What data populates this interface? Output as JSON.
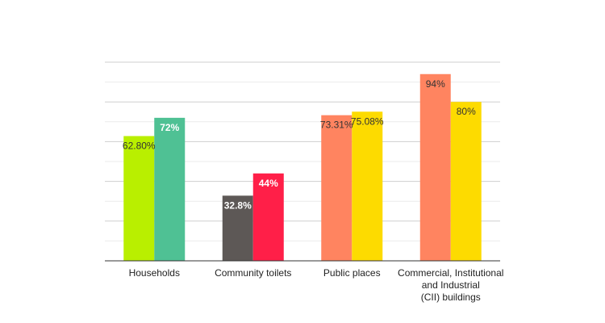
{
  "chart_data": {
    "type": "bar",
    "title": "",
    "xlabel": "",
    "ylabel": "",
    "ylim": [
      0,
      100
    ],
    "grid": true,
    "categories": [
      [
        "Households"
      ],
      [
        "Community toilets"
      ],
      [
        "Public places"
      ],
      [
        "Commercial, Institutional",
        "and Industrial",
        "(CII) buildings"
      ]
    ],
    "bars": [
      [
        {
          "value": 62.8,
          "label": "62.80%",
          "color": "#b9ef00",
          "label_color": "#333333",
          "bold": false
        },
        {
          "value": 72,
          "label": "72%",
          "color": "#4fc194",
          "label_color": "#ffffff",
          "bold": true
        }
      ],
      [
        {
          "value": 32.8,
          "label": "32.8%",
          "color": "#5d5856",
          "label_color": "#ffffff",
          "bold": true
        },
        {
          "value": 44,
          "label": "44%",
          "color": "#ff1f48",
          "label_color": "#ffffff",
          "bold": true
        }
      ],
      [
        {
          "value": 73.31,
          "label": "73.31%",
          "color": "#ff8460",
          "label_color": "#333333",
          "bold": false
        },
        {
          "value": 75.08,
          "label": "75.08%",
          "color": "#fddb00",
          "label_color": "#333333",
          "bold": false
        }
      ],
      [
        {
          "value": 94,
          "label": "94%",
          "color": "#ff8460",
          "label_color": "#333333",
          "bold": false
        },
        {
          "value": 80,
          "label": "80%",
          "color": "#fddb00",
          "label_color": "#333333",
          "bold": false
        }
      ]
    ]
  }
}
